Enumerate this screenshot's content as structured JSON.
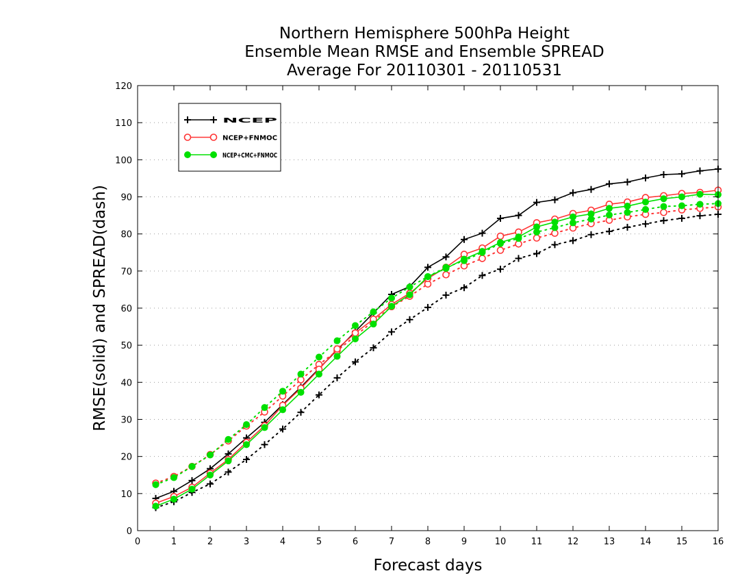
{
  "chart_data": {
    "type": "line",
    "title": [
      "Northern Hemisphere 500hPa Height",
      "Ensemble Mean RMSE and Ensemble SPREAD",
      "Average For 20110301 - 20110531"
    ],
    "xlabel": "Forecast days",
    "ylabel": "RMSE(solid) and SPREAD(dash)",
    "xlim": [
      0,
      16
    ],
    "ylim": [
      0,
      120
    ],
    "xticks": [
      "0",
      "1",
      "2",
      "3",
      "4",
      "5",
      "6",
      "7",
      "8",
      "9",
      "10",
      "11",
      "12",
      "13",
      "14",
      "15",
      "16"
    ],
    "yticks": [
      "0",
      "10",
      "20",
      "30",
      "40",
      "50",
      "60",
      "70",
      "80",
      "90",
      "100",
      "110",
      "120"
    ],
    "grid": "horizontal dotted",
    "legend_position": "top-left",
    "x": [
      0.5,
      1,
      1.5,
      2,
      2.5,
      3,
      3.5,
      4,
      4.5,
      5,
      5.5,
      6,
      6.5,
      7,
      7.5,
      8,
      8.5,
      9,
      9.5,
      10,
      10.5,
      11,
      11.5,
      12,
      12.5,
      13,
      13.5,
      14,
      14.5,
      15,
      15.5,
      16
    ],
    "series": [
      {
        "name": "NCEP",
        "color": "#000000",
        "marker": "plus",
        "rmse": [
          8.7,
          10.6,
          13.5,
          16.7,
          20.7,
          25.0,
          29.2,
          34.0,
          38.7,
          43.7,
          48.7,
          53.7,
          58.7,
          63.7,
          65.8,
          71.0,
          73.8,
          78.5,
          80.2,
          84.2,
          85.0,
          88.5,
          89.2,
          91.1,
          92.0,
          93.5,
          94.0,
          95.1,
          96.0,
          96.2,
          97.0,
          97.5
        ],
        "spread": [
          6.2,
          7.8,
          10.3,
          12.6,
          15.8,
          19.2,
          23.2,
          27.4,
          31.9,
          36.6,
          41.2,
          45.5,
          49.3,
          53.6,
          56.9,
          60.2,
          63.5,
          65.5,
          68.8,
          70.5,
          73.4,
          74.7,
          77.1,
          78.2,
          79.8,
          80.7,
          81.8,
          82.7,
          83.6,
          84.2,
          84.9,
          85.3
        ]
      },
      {
        "name": "NCEP+FNMOC",
        "color": "#ff3333",
        "marker": "open-circle",
        "rmse": [
          7.4,
          9.2,
          11.7,
          15.5,
          19.2,
          23.8,
          28.3,
          33.8,
          38.4,
          43.5,
          49.0,
          53.3,
          57.0,
          61.0,
          64.0,
          68.0,
          71.0,
          74.5,
          76.2,
          79.4,
          80.5,
          83.0,
          84.0,
          85.5,
          86.4,
          88.0,
          88.6,
          89.8,
          90.3,
          90.9,
          91.2,
          91.8
        ],
        "spread": [
          12.8,
          14.6,
          17.3,
          20.5,
          24.2,
          28.2,
          32.0,
          36.3,
          40.7,
          44.8,
          48.5,
          52.5,
          56.5,
          60.4,
          63.2,
          66.5,
          69.0,
          71.4,
          73.4,
          75.6,
          77.3,
          78.9,
          80.2,
          81.6,
          82.8,
          83.7,
          84.6,
          85.3,
          85.8,
          86.5,
          86.9,
          87.3
        ]
      },
      {
        "name": "NCEP+CMC+FNMOC",
        "color": "#00e000",
        "marker": "filled-circle",
        "rmse": [
          6.6,
          8.5,
          11.2,
          15.0,
          18.8,
          23.2,
          27.8,
          32.6,
          37.3,
          42.2,
          47.0,
          51.7,
          55.7,
          60.5,
          63.6,
          68.5,
          70.7,
          73.2,
          75.3,
          77.7,
          79.2,
          81.9,
          83.2,
          84.6,
          85.4,
          86.9,
          87.5,
          88.6,
          89.5,
          90.0,
          90.7,
          90.6
        ],
        "spread": [
          12.4,
          14.3,
          17.3,
          20.4,
          24.6,
          28.6,
          33.2,
          37.6,
          42.2,
          46.8,
          51.2,
          55.3,
          59.0,
          62.7,
          65.7,
          68.5,
          71.0,
          72.8,
          75.0,
          77.4,
          78.8,
          80.5,
          81.7,
          83.0,
          84.0,
          85.1,
          85.8,
          86.6,
          87.4,
          87.6,
          88.0,
          88.2
        ]
      }
    ]
  }
}
